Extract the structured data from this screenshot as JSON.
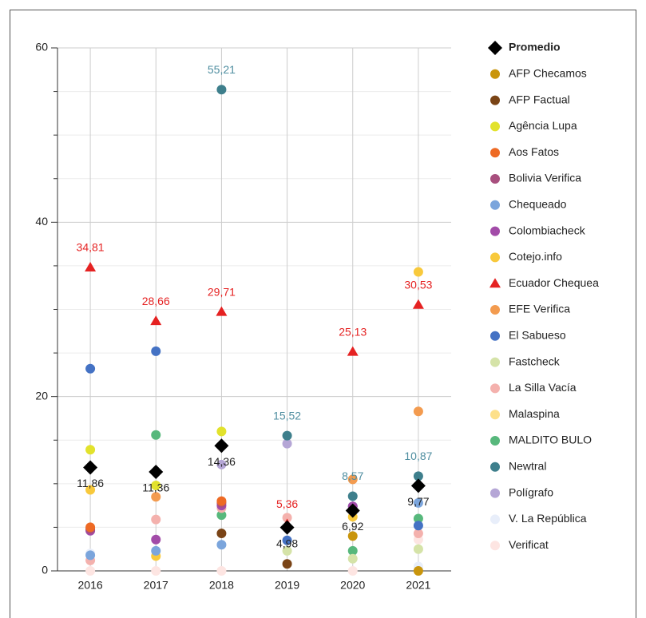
{
  "chart_data": {
    "type": "scatter",
    "categories": [
      "2016",
      "2017",
      "2018",
      "2019",
      "2020",
      "2021"
    ],
    "ylim": [
      0,
      60
    ],
    "yticks": [
      0,
      20,
      40,
      60
    ],
    "minor_yticks": [
      5,
      10,
      15,
      25,
      30,
      35,
      45,
      50,
      55
    ],
    "grid": true,
    "legend": "right",
    "series": [
      {
        "name": "Promedio",
        "color": "#000000",
        "marker": "diamond",
        "values": [
          11.86,
          11.36,
          14.36,
          4.98,
          6.92,
          9.77
        ],
        "value_labels": [
          "11,86",
          "11,36",
          "14,36",
          "4,98",
          "6,92",
          "9,77"
        ],
        "label_color": "#222222"
      },
      {
        "name": "AFP Checamos",
        "color": "#c9950c",
        "marker": "circle",
        "values": [
          null,
          null,
          null,
          null,
          4.0,
          0
        ]
      },
      {
        "name": "AFP Factual",
        "color": "#7a4416",
        "marker": "circle",
        "values": [
          null,
          null,
          4.3,
          0.8,
          null,
          null
        ]
      },
      {
        "name": "Agência Lupa",
        "color": "#e2e22c",
        "marker": "circle",
        "values": [
          13.9,
          9.8,
          16.0,
          null,
          null,
          null
        ]
      },
      {
        "name": "Aos Fatos",
        "color": "#ee6a24",
        "marker": "circle",
        "values": [
          5.0,
          null,
          8.0,
          null,
          null,
          null
        ]
      },
      {
        "name": "Bolivia Verifica",
        "color": "#a84f7e",
        "marker": "circle",
        "values": [
          4.8,
          null,
          7.8,
          null,
          null,
          null
        ]
      },
      {
        "name": "Chequeado",
        "color": "#7ba5dc",
        "marker": "circle",
        "values": [
          1.8,
          2.3,
          3.0,
          null,
          6.9,
          7.8
        ]
      },
      {
        "name": "Colombiacheck",
        "color": "#a24ba8",
        "marker": "circle",
        "values": [
          4.6,
          3.6,
          7.5,
          null,
          7.4,
          null
        ]
      },
      {
        "name": "Cotejo.info",
        "color": "#f8c93c",
        "marker": "circle",
        "values": [
          9.3,
          1.7,
          null,
          null,
          6.2,
          34.3
        ]
      },
      {
        "name": "Ecuador Chequea",
        "color": "#e52222",
        "marker": "triangle",
        "values": [
          34.81,
          28.66,
          29.71,
          5.36,
          25.13,
          30.53
        ],
        "value_labels": [
          "34,81",
          "28,66",
          "29,71",
          "5,36",
          "25,13",
          "30,53"
        ],
        "label_color": "#e52222"
      },
      {
        "name": "EFE Verifica",
        "color": "#f39b4f",
        "marker": "circle",
        "values": [
          null,
          8.5,
          null,
          null,
          10.5,
          18.3
        ]
      },
      {
        "name": "El Sabueso",
        "color": "#4472c4",
        "marker": "circle",
        "values": [
          23.2,
          25.2,
          null,
          3.5,
          7.4,
          5.2
        ]
      },
      {
        "name": "Fastcheck",
        "color": "#d5e3a8",
        "marker": "circle",
        "values": [
          null,
          null,
          null,
          2.3,
          1.4,
          2.5
        ]
      },
      {
        "name": "La Silla Vacía",
        "color": "#f4b1ad",
        "marker": "circle",
        "values": [
          1.2,
          5.9,
          7.2,
          6.1,
          null,
          4.3
        ]
      },
      {
        "name": "Malaspina",
        "color": "#fde08a",
        "marker": "circle",
        "values": [
          null,
          null,
          null,
          null,
          null,
          null
        ]
      },
      {
        "name": "MALDITO BULO",
        "color": "#57b87c",
        "marker": "circle",
        "values": [
          null,
          15.6,
          6.4,
          5.0,
          2.3,
          6.0
        ]
      },
      {
        "name": "Newtral",
        "color": "#3e7f8c",
        "marker": "circle",
        "values": [
          null,
          null,
          55.21,
          15.52,
          8.57,
          10.87
        ],
        "value_labels": [
          null,
          null,
          "55,21",
          "15,52",
          "8,57",
          "10,87"
        ],
        "label_color": "#4f8ea0"
      },
      {
        "name": "Polígrafo",
        "color": "#b5a6d6",
        "marker": "circle",
        "values": [
          null,
          null,
          12.2,
          14.6,
          null,
          null
        ]
      },
      {
        "name": "V. La República",
        "color": "#e8eefa",
        "marker": "circle",
        "values": [
          2.0,
          null,
          null,
          null,
          null,
          0.5
        ]
      },
      {
        "name": "Verificat",
        "color": "#fde5e2",
        "marker": "circle",
        "values": [
          0,
          0,
          0,
          null,
          0,
          3.6
        ]
      }
    ]
  }
}
